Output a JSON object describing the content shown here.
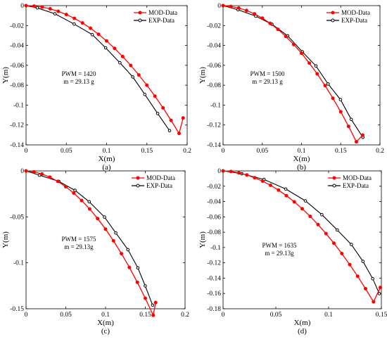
{
  "chart_data": [
    {
      "type": "line",
      "panel_label": "(a)",
      "xlabel": "X(m)",
      "ylabel": "Y(m)",
      "xlim": [
        0,
        0.2
      ],
      "ylim": [
        -0.14,
        0
      ],
      "xticks": [
        0,
        0.05,
        0.1,
        0.15,
        0.2
      ],
      "yticks": [
        0,
        -0.02,
        -0.04,
        -0.06,
        -0.08,
        -0.1,
        -0.12,
        -0.14
      ],
      "xtick_labels": [
        "0",
        "0.05",
        "0.1",
        "0.15",
        "0.2"
      ],
      "ytick_labels": [
        "0",
        "-0.02",
        "-0.04",
        "-0.06",
        "-0.08",
        "-0.1",
        "-0.12",
        "-0.14"
      ],
      "annotation": [
        "PWM = 1420",
        "m = 29.13 g"
      ],
      "legend_position": "top-right",
      "series": [
        {
          "name": "MOD-Data",
          "color": "#ff0000",
          "marker": "filled-circle",
          "x": [
            0,
            0.01,
            0.02,
            0.03,
            0.04,
            0.05,
            0.06,
            0.07,
            0.08,
            0.09,
            0.1,
            0.11,
            0.12,
            0.13,
            0.14,
            0.15,
            0.16,
            0.17,
            0.18,
            0.19,
            0.195
          ],
          "y": [
            0,
            -0.0004,
            -0.0014,
            -0.0032,
            -0.0057,
            -0.0089,
            -0.0128,
            -0.0174,
            -0.0227,
            -0.0288,
            -0.0355,
            -0.043,
            -0.0512,
            -0.0601,
            -0.0697,
            -0.08,
            -0.0911,
            -0.1028,
            -0.1153,
            -0.1285,
            -0.113
          ]
        },
        {
          "name": "EXP-Data",
          "color": "#000000",
          "marker": "open-circle",
          "x": [
            0,
            0.0141,
            0.0359,
            0.0597,
            0.0822,
            0.0988,
            0.1165,
            0.1325,
            0.1474,
            0.1634,
            0.1782
          ],
          "y": [
            0,
            -0.0023,
            -0.0082,
            -0.0185,
            -0.0291,
            -0.0424,
            -0.0574,
            -0.0717,
            -0.0892,
            -0.1085,
            -0.1257
          ]
        }
      ]
    },
    {
      "type": "line",
      "panel_label": "(b)",
      "xlabel": "X(m)",
      "ylabel": "Y(m)",
      "xlim": [
        0,
        0.2
      ],
      "ylim": [
        -0.14,
        0
      ],
      "xticks": [
        0,
        0.05,
        0.1,
        0.15,
        0.2
      ],
      "yticks": [
        0,
        -0.02,
        -0.04,
        -0.06,
        -0.08,
        -0.1,
        -0.12,
        -0.14
      ],
      "xtick_labels": [
        "0",
        "0.05",
        "0.1",
        "0.15",
        "0.2"
      ],
      "ytick_labels": [
        "0",
        "-0.02",
        "-0.04",
        "-0.06",
        "-0.08",
        "-0.1",
        "-0.12",
        "-0.14"
      ],
      "annotation": [
        "PWM = 1500",
        "m = 29.13 g"
      ],
      "legend_position": "top-right",
      "series": [
        {
          "name": "MOD-Data",
          "color": "#ff0000",
          "marker": "filled-circle",
          "x": [
            0,
            0.01,
            0.02,
            0.03,
            0.04,
            0.05,
            0.06,
            0.07,
            0.08,
            0.09,
            0.1,
            0.11,
            0.12,
            0.13,
            0.14,
            0.15,
            0.16,
            0.17,
            0.178
          ],
          "y": [
            0,
            -0.0008,
            -0.0024,
            -0.0049,
            -0.0083,
            -0.0126,
            -0.0178,
            -0.0239,
            -0.031,
            -0.039,
            -0.0479,
            -0.0578,
            -0.0686,
            -0.0804,
            -0.0931,
            -0.1068,
            -0.1214,
            -0.1369,
            -0.1302
          ]
        },
        {
          "name": "EXP-Data",
          "color": "#000000",
          "marker": "open-circle",
          "x": [
            0,
            0.0191,
            0.0417,
            0.0622,
            0.0823,
            0.1011,
            0.1184,
            0.1339,
            0.1497,
            0.1634,
            0.1782
          ],
          "y": [
            0,
            -0.0042,
            -0.0106,
            -0.0187,
            -0.0303,
            -0.0464,
            -0.0607,
            -0.0788,
            -0.0945,
            -0.1144,
            -0.1324
          ]
        }
      ]
    },
    {
      "type": "line",
      "panel_label": "(c)",
      "xlabel": "X(m)",
      "ylabel": "Y(m)",
      "xlim": [
        0,
        0.2
      ],
      "ylim": [
        -0.15,
        0
      ],
      "xticks": [
        0,
        0.05,
        0.1,
        0.15,
        0.2
      ],
      "yticks": [
        0,
        -0.05,
        -0.1,
        -0.15
      ],
      "xtick_labels": [
        "0",
        "0.05",
        "0.1",
        "0.15",
        "0.2"
      ],
      "ytick_labels": [
        "0",
        "-0.05",
        "-0.1",
        "-0.15"
      ],
      "annotation": [
        "PWM = 1575",
        "m = 29.13g"
      ],
      "legend_position": "top-right",
      "series": [
        {
          "name": "MOD-Data",
          "color": "#ff0000",
          "marker": "filled-circle",
          "x": [
            0,
            0.01,
            0.02,
            0.03,
            0.04,
            0.05,
            0.06,
            0.07,
            0.08,
            0.09,
            0.1,
            0.11,
            0.12,
            0.13,
            0.14,
            0.15,
            0.16,
            0.163
          ],
          "y": [
            0,
            -0.0011,
            -0.0034,
            -0.0068,
            -0.0114,
            -0.0172,
            -0.0241,
            -0.0322,
            -0.0414,
            -0.0518,
            -0.0634,
            -0.0761,
            -0.09,
            -0.105,
            -0.1212,
            -0.1386,
            -0.1571,
            -0.1432
          ]
        },
        {
          "name": "EXP-Data",
          "color": "#000000",
          "marker": "open-circle",
          "x": [
            0,
            0.0169,
            0.0412,
            0.0616,
            0.0795,
            0.0987,
            0.1129,
            0.1281,
            0.1406,
            0.1499,
            0.1592
          ],
          "y": [
            0,
            -0.0047,
            -0.0114,
            -0.0211,
            -0.0336,
            -0.0502,
            -0.0675,
            -0.0856,
            -0.1055,
            -0.1251,
            -0.1461
          ]
        }
      ]
    },
    {
      "type": "line",
      "panel_label": "(d)",
      "xlabel": "X(m)",
      "ylabel": "Y(m)",
      "xlim": [
        0,
        0.15
      ],
      "ylim": [
        -0.18,
        0
      ],
      "xticks": [
        0,
        0.05,
        0.1,
        0.15
      ],
      "yticks": [
        0,
        -0.02,
        -0.04,
        -0.06,
        -0.08,
        -0.1,
        -0.12,
        -0.14,
        -0.16,
        -0.18
      ],
      "xtick_labels": [
        "0",
        "0.05",
        "0.1",
        "0.15"
      ],
      "ytick_labels": [
        "0",
        "-0.02",
        "-0.04",
        "-0.06",
        "-0.08",
        "-0.1",
        "-0.12",
        "-0.14",
        "-0.16",
        "-0.18"
      ],
      "annotation": [
        "PWM = 1635",
        "m = 29.13g"
      ],
      "legend_position": "top-right",
      "series": [
        {
          "name": "MOD-Data",
          "color": "#ff0000",
          "marker": "filled-circle",
          "x": [
            0,
            0.0075,
            0.015,
            0.0225,
            0.03,
            0.0375,
            0.045,
            0.0525,
            0.06,
            0.0675,
            0.075,
            0.0825,
            0.09,
            0.0975,
            0.105,
            0.1125,
            0.12,
            0.1275,
            0.135,
            0.1425,
            0.149
          ],
          "y": [
            0,
            -0.0008,
            -0.0026,
            -0.0053,
            -0.0089,
            -0.0134,
            -0.0188,
            -0.0251,
            -0.0323,
            -0.0404,
            -0.0494,
            -0.0593,
            -0.0701,
            -0.0818,
            -0.0944,
            -0.1079,
            -0.1223,
            -0.1376,
            -0.1538,
            -0.1709,
            -0.1522
          ]
        },
        {
          "name": "EXP-Data",
          "color": "#000000",
          "marker": "open-circle",
          "x": [
            0,
            0.0177,
            0.0387,
            0.0594,
            0.0781,
            0.0936,
            0.1082,
            0.1215,
            0.1325,
            0.1418,
            0.1481
          ],
          "y": [
            0,
            -0.0037,
            -0.0111,
            -0.0237,
            -0.0391,
            -0.0571,
            -0.0771,
            -0.0961,
            -0.1181,
            -0.1407,
            -0.1603
          ]
        }
      ]
    }
  ]
}
